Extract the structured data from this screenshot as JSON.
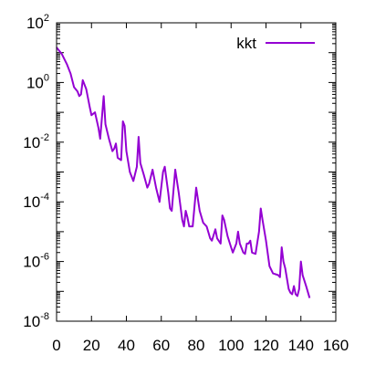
{
  "chart_data": {
    "type": "line",
    "title": "",
    "xlabel": "",
    "ylabel": "",
    "xlim": [
      0,
      160
    ],
    "ylim": [
      1e-08,
      100
    ],
    "yscale": "log",
    "grid": false,
    "legend_position": "top-right",
    "x_ticks": [
      0,
      20,
      40,
      60,
      80,
      100,
      120,
      140,
      160
    ],
    "y_ticks": [
      {
        "value": 1e-08,
        "base": "10",
        "exp": "-8"
      },
      {
        "value": 1e-06,
        "base": "10",
        "exp": "-6"
      },
      {
        "value": 0.0001,
        "base": "10",
        "exp": "-4"
      },
      {
        "value": 0.01,
        "base": "10",
        "exp": "-2"
      },
      {
        "value": 1,
        "base": "10",
        "exp": "0"
      },
      {
        "value": 100,
        "base": "10",
        "exp": "2"
      }
    ],
    "series": [
      {
        "name": "kkt",
        "color": "#9400d3",
        "points": [
          [
            0,
            15
          ],
          [
            3,
            9
          ],
          [
            6,
            4
          ],
          [
            8,
            2
          ],
          [
            10,
            0.7
          ],
          [
            12,
            0.5
          ],
          [
            13,
            0.35
          ],
          [
            14,
            0.4
          ],
          [
            15,
            1.2
          ],
          [
            17,
            0.6
          ],
          [
            19,
            0.15
          ],
          [
            20,
            0.08
          ],
          [
            22,
            0.1
          ],
          [
            24,
            0.03
          ],
          [
            25,
            0.013
          ],
          [
            27,
            0.35
          ],
          [
            28,
            0.04
          ],
          [
            30,
            0.013
          ],
          [
            32,
            0.005
          ],
          [
            33,
            0.006
          ],
          [
            34,
            0.009
          ],
          [
            35,
            0.003
          ],
          [
            37,
            0.0025
          ],
          [
            38,
            0.05
          ],
          [
            39,
            0.035
          ],
          [
            40,
            0.005
          ],
          [
            42,
            0.001
          ],
          [
            44,
            0.0005
          ],
          [
            46,
            0.0015
          ],
          [
            47,
            0.015
          ],
          [
            48,
            0.002
          ],
          [
            50,
            0.0008
          ],
          [
            52,
            0.0003
          ],
          [
            53,
            0.0004
          ],
          [
            55,
            0.0012
          ],
          [
            57,
            0.0003
          ],
          [
            59,
            0.0001
          ],
          [
            61,
            0.001
          ],
          [
            62,
            0.0015
          ],
          [
            64,
            0.0002
          ],
          [
            65,
            6e-05
          ],
          [
            66,
            5e-05
          ],
          [
            68,
            0.0012
          ],
          [
            70,
            0.0002
          ],
          [
            72,
            2.5e-05
          ],
          [
            73,
            1.5e-05
          ],
          [
            74,
            5e-05
          ],
          [
            75,
            3e-05
          ],
          [
            76,
            1.5e-05
          ],
          [
            78,
            1.5e-05
          ],
          [
            80,
            0.0003
          ],
          [
            82,
            5e-05
          ],
          [
            84,
            2e-05
          ],
          [
            86,
            1.5e-05
          ],
          [
            88,
            6e-06
          ],
          [
            89,
            5e-06
          ],
          [
            91,
            1.2e-05
          ],
          [
            92,
            6e-06
          ],
          [
            94,
            4e-06
          ],
          [
            95,
            3.5e-05
          ],
          [
            96,
            2.5e-05
          ],
          [
            98,
            7e-06
          ],
          [
            100,
            3e-06
          ],
          [
            101,
            2e-06
          ],
          [
            103,
            4e-06
          ],
          [
            104,
            1e-05
          ],
          [
            105,
            4e-06
          ],
          [
            107,
            2e-06
          ],
          [
            108,
            1.8e-06
          ],
          [
            109,
            4e-06
          ],
          [
            110,
            4e-06
          ],
          [
            111,
            5e-06
          ],
          [
            112,
            2e-06
          ],
          [
            114,
            1.8e-06
          ],
          [
            116,
            1e-05
          ],
          [
            117,
            6e-05
          ],
          [
            118,
            2.5e-05
          ],
          [
            120,
            5e-06
          ],
          [
            122,
            7e-07
          ],
          [
            124,
            4e-07
          ],
          [
            127,
            3.5e-07
          ],
          [
            128,
            3e-07
          ],
          [
            129,
            3e-06
          ],
          [
            130,
            1e-06
          ],
          [
            131,
            6e-07
          ],
          [
            133,
            1.2e-07
          ],
          [
            134,
            9e-08
          ],
          [
            135,
            8e-08
          ],
          [
            136,
            1.5e-07
          ],
          [
            137,
            8e-08
          ],
          [
            138,
            7e-08
          ],
          [
            139,
            1.2e-07
          ],
          [
            140,
            1e-06
          ],
          [
            141,
            3.5e-07
          ],
          [
            143,
            1.5e-07
          ],
          [
            145,
            6e-08
          ]
        ]
      }
    ]
  }
}
